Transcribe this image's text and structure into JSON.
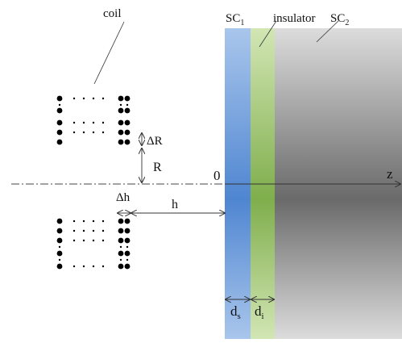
{
  "labels": {
    "coil": "coil",
    "sc1": "SC",
    "sc1_sub": "1",
    "insulator": "insulator",
    "sc2": "SC",
    "sc2_sub": "2",
    "origin": "0",
    "z_axis": "z",
    "delta_r": "ΔR",
    "r": "R",
    "delta_h": "Δh",
    "h": "h",
    "ds": "d",
    "ds_sub": "s",
    "di": "d",
    "di_sub": "i"
  },
  "colors": {
    "sc1_layer": "#9fc0e8",
    "sc1_center": "#4f86d1",
    "insulator_layer": "#c9e0a8",
    "insulator_center": "#7fae4c",
    "sc2_layer": "#d8d8d8",
    "sc2_center": "#6f6f6f",
    "lines": "#333333",
    "dots": "#000000"
  }
}
